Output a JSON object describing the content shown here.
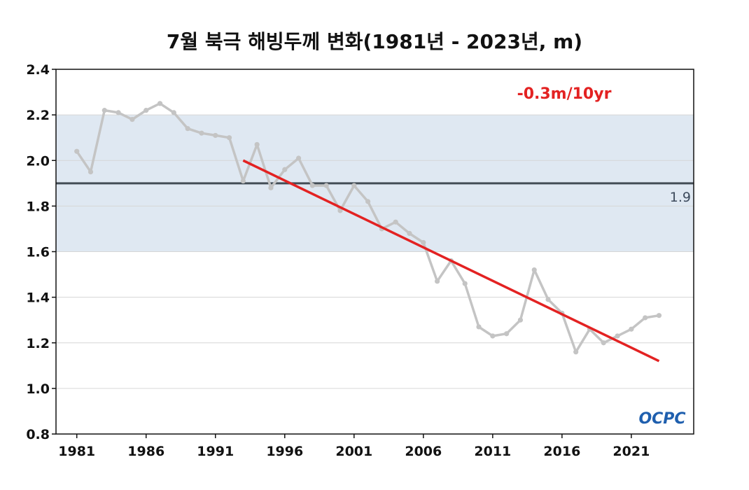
{
  "chart_data": {
    "type": "line",
    "title": "7월 북극 해빙두께 변화(1981년 - 2023년, m)",
    "xlabel": "",
    "ylabel": "",
    "ylim": [
      0.8,
      2.4
    ],
    "xlim": [
      1979.5,
      2025.5
    ],
    "x_ticks": [
      1981,
      1986,
      1991,
      1996,
      2001,
      2006,
      2011,
      2016,
      2021
    ],
    "y_ticks": [
      0.8,
      1.0,
      1.2,
      1.4,
      1.6,
      1.8,
      2.0,
      2.2,
      2.4
    ],
    "y_tick_labels": [
      "0.8",
      "1.0",
      "1.2",
      "1.4",
      "1.6",
      "1.8",
      "2.0",
      "2.2",
      "2.4"
    ],
    "grid": true,
    "series": [
      {
        "x": [
          1981,
          1982,
          1983,
          1984,
          1985,
          1986,
          1987,
          1988,
          1989,
          1990,
          1991,
          1992,
          1993,
          1994,
          1995,
          1996,
          1997,
          1998,
          1999,
          2000,
          2001,
          2002,
          2003,
          2004,
          2005,
          2006,
          2007,
          2008,
          2009,
          2010,
          2011,
          2012,
          2013,
          2014,
          2015,
          2016,
          2017,
          2018,
          2019,
          2020,
          2021,
          2022,
          2023
        ],
        "values": [
          2.04,
          1.95,
          2.22,
          2.21,
          2.18,
          2.22,
          2.25,
          2.21,
          2.14,
          2.12,
          2.11,
          2.1,
          1.91,
          2.07,
          1.88,
          1.96,
          2.01,
          1.89,
          1.89,
          1.78,
          1.89,
          1.82,
          1.7,
          1.73,
          1.68,
          1.64,
          1.47,
          1.56,
          1.46,
          1.27,
          1.23,
          1.24,
          1.3,
          1.52,
          1.39,
          1.33,
          1.16,
          1.26,
          1.2,
          1.23,
          1.26,
          1.31,
          1.32
        ],
        "color": "#c4c4c4"
      }
    ],
    "trend": {
      "x": [
        1993,
        2023
      ],
      "values": [
        2.0,
        1.12
      ],
      "color": "#e32222",
      "label": "-0.3m/10yr"
    },
    "mean": {
      "value": 1.9,
      "label": "1.9",
      "color": "#434d56"
    },
    "band": {
      "range": [
        1.6,
        2.2
      ],
      "color": "#dfe8f2"
    },
    "logo_text": "OCPC"
  }
}
